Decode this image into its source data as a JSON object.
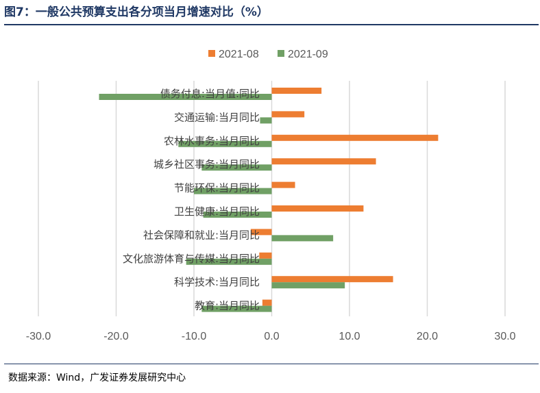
{
  "title": "图7：一般公共预算支出各分项当月增速对比（%）",
  "source": "数据来源：Wind，广发证券发展研究中心",
  "chart_data": {
    "type": "bar",
    "orientation": "horizontal",
    "categories": [
      "债务付息:当月值:同比",
      "交通运输:当月同比",
      "农林水事务:当月同比",
      "城乡社区事务:当月同比",
      "节能环保:当月同比",
      "卫生健康:当月同比",
      "社会保障和就业:当月同比",
      "文化旅游体育与传媒:当月同比",
      "科学技术:当月同比",
      "教育:当月同比"
    ],
    "series": [
      {
        "name": "2021-08",
        "color": "#ed7d31",
        "values": [
          6.4,
          4.2,
          21.4,
          13.4,
          3.0,
          11.8,
          -2.7,
          -1.6,
          15.6,
          -1.2
        ]
      },
      {
        "name": "2021-09",
        "color": "#70a065",
        "values": [
          -22.2,
          -1.5,
          -12.0,
          -9.0,
          -10.0,
          -8.8,
          7.9,
          -11.0,
          9.4,
          -9.0
        ]
      }
    ],
    "xlim": [
      -30,
      30
    ],
    "xticks": [
      "-30.0",
      "-20.0",
      "-10.0",
      "0.0",
      "10.0",
      "20.0",
      "30.0"
    ],
    "xtick_values": [
      -30,
      -20,
      -10,
      0,
      10,
      20,
      30
    ],
    "grid": "vertical",
    "legend": "top-center"
  }
}
